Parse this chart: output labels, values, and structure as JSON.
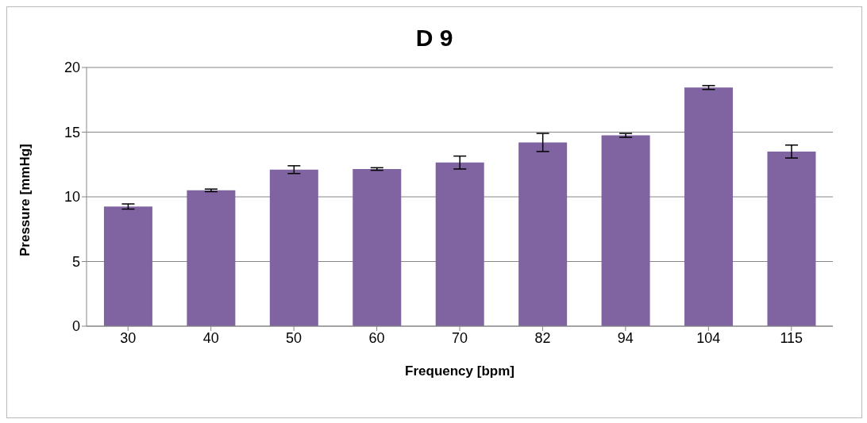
{
  "chart_data": {
    "type": "bar",
    "title": "D 9",
    "xlabel": "Frequency [bpm]",
    "ylabel": "Pressure [mmHg]",
    "categories": [
      "30",
      "40",
      "50",
      "60",
      "70",
      "82",
      "94",
      "104",
      "115"
    ],
    "values": [
      9.25,
      10.5,
      12.1,
      12.15,
      12.65,
      14.2,
      14.75,
      18.45,
      13.5
    ],
    "errors": [
      0.2,
      0.1,
      0.3,
      0.1,
      0.5,
      0.7,
      0.15,
      0.15,
      0.5
    ],
    "color": "#8064a2",
    "ylim": [
      0,
      20
    ],
    "yticks": [
      0,
      5,
      10,
      15,
      20
    ],
    "grid": "y",
    "legend": false
  }
}
